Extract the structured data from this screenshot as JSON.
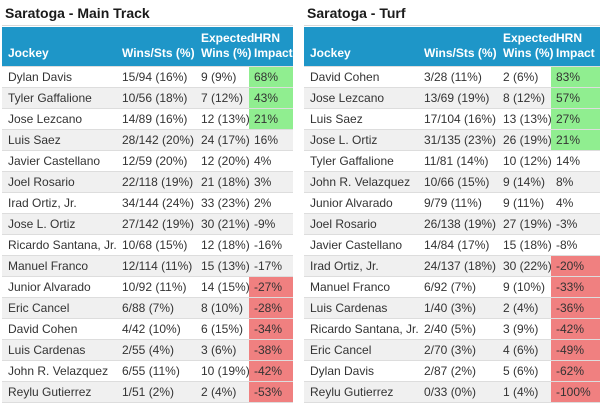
{
  "colors": {
    "header_bg": "#1e96c8",
    "header_text": "#ffffff",
    "positive_bg": "#90ee90",
    "negative_bg": "#f08080",
    "stripe_bg": "#f0f0f0",
    "row_border": "#dddddd",
    "text": "#333333",
    "title_text": "#1a1a1a"
  },
  "tables": [
    {
      "title": "Saratoga - Main Track",
      "headers": {
        "jockey": "Jockey",
        "wins_sts": "Wins/Sts (%)",
        "expected_l1": "Expected",
        "expected_l2": "Wins (%)",
        "impact_l1": "HRN",
        "impact_l2": "Impact"
      },
      "rows": [
        {
          "jockey": "Dylan Davis",
          "wins_sts": "15/94 (16%)",
          "expected": "9 (9%)",
          "impact": "68%",
          "highlight": "green"
        },
        {
          "jockey": "Tyler Gaffalione",
          "wins_sts": "10/56 (18%)",
          "expected": "7 (12%)",
          "impact": "43%",
          "highlight": "green"
        },
        {
          "jockey": "Jose Lezcano",
          "wins_sts": "14/89 (16%)",
          "expected": "12 (13%)",
          "impact": "21%",
          "highlight": "green"
        },
        {
          "jockey": "Luis Saez",
          "wins_sts": "28/142 (20%)",
          "expected": "24 (17%)",
          "impact": "16%",
          "highlight": "none"
        },
        {
          "jockey": "Javier Castellano",
          "wins_sts": "12/59 (20%)",
          "expected": "12 (20%)",
          "impact": "4%",
          "highlight": "none"
        },
        {
          "jockey": "Joel Rosario",
          "wins_sts": "22/118 (19%)",
          "expected": "21 (18%)",
          "impact": "3%",
          "highlight": "none"
        },
        {
          "jockey": "Irad Ortiz, Jr.",
          "wins_sts": "34/144 (24%)",
          "expected": "33 (23%)",
          "impact": "2%",
          "highlight": "none"
        },
        {
          "jockey": "Jose L. Ortiz",
          "wins_sts": "27/142 (19%)",
          "expected": "30 (21%)",
          "impact": "-9%",
          "highlight": "none"
        },
        {
          "jockey": "Ricardo Santana, Jr.",
          "wins_sts": "10/68 (15%)",
          "expected": "12 (18%)",
          "impact": "-16%",
          "highlight": "none"
        },
        {
          "jockey": "Manuel Franco",
          "wins_sts": "12/114 (11%)",
          "expected": "15 (13%)",
          "impact": "-17%",
          "highlight": "none"
        },
        {
          "jockey": "Junior Alvarado",
          "wins_sts": "10/92 (11%)",
          "expected": "14 (15%)",
          "impact": "-27%",
          "highlight": "red"
        },
        {
          "jockey": "Eric Cancel",
          "wins_sts": "6/88 (7%)",
          "expected": "8 (10%)",
          "impact": "-28%",
          "highlight": "red"
        },
        {
          "jockey": "David Cohen",
          "wins_sts": "4/42 (10%)",
          "expected": "6 (15%)",
          "impact": "-34%",
          "highlight": "red"
        },
        {
          "jockey": "Luis Cardenas",
          "wins_sts": "2/55 (4%)",
          "expected": "3 (6%)",
          "impact": "-38%",
          "highlight": "red"
        },
        {
          "jockey": "John R. Velazquez",
          "wins_sts": "6/55 (11%)",
          "expected": "10 (19%)",
          "impact": "-42%",
          "highlight": "red"
        },
        {
          "jockey": "Reylu Gutierrez",
          "wins_sts": "1/51 (2%)",
          "expected": "2 (4%)",
          "impact": "-53%",
          "highlight": "red"
        }
      ]
    },
    {
      "title": "Saratoga - Turf",
      "headers": {
        "jockey": "Jockey",
        "wins_sts": "Wins/Sts (%)",
        "expected_l1": "Expected",
        "expected_l2": "Wins (%)",
        "impact_l1": "HRN",
        "impact_l2": "Impact"
      },
      "rows": [
        {
          "jockey": "David Cohen",
          "wins_sts": "3/28 (11%)",
          "expected": "2 (6%)",
          "impact": "83%",
          "highlight": "green"
        },
        {
          "jockey": "Jose Lezcano",
          "wins_sts": "13/69 (19%)",
          "expected": "8 (12%)",
          "impact": "57%",
          "highlight": "green"
        },
        {
          "jockey": "Luis Saez",
          "wins_sts": "17/104 (16%)",
          "expected": "13 (13%)",
          "impact": "27%",
          "highlight": "green"
        },
        {
          "jockey": "Jose L. Ortiz",
          "wins_sts": "31/135 (23%)",
          "expected": "26 (19%)",
          "impact": "21%",
          "highlight": "green"
        },
        {
          "jockey": "Tyler Gaffalione",
          "wins_sts": "11/81 (14%)",
          "expected": "10 (12%)",
          "impact": "14%",
          "highlight": "none"
        },
        {
          "jockey": "John R. Velazquez",
          "wins_sts": "10/66 (15%)",
          "expected": "9 (14%)",
          "impact": "8%",
          "highlight": "none"
        },
        {
          "jockey": "Junior Alvarado",
          "wins_sts": "9/79 (11%)",
          "expected": "9 (11%)",
          "impact": "4%",
          "highlight": "none"
        },
        {
          "jockey": "Joel Rosario",
          "wins_sts": "26/138 (19%)",
          "expected": "27 (19%)",
          "impact": "-3%",
          "highlight": "none"
        },
        {
          "jockey": "Javier Castellano",
          "wins_sts": "14/84 (17%)",
          "expected": "15 (18%)",
          "impact": "-8%",
          "highlight": "none"
        },
        {
          "jockey": "Irad Ortiz, Jr.",
          "wins_sts": "24/137 (18%)",
          "expected": "30 (22%)",
          "impact": "-20%",
          "highlight": "red"
        },
        {
          "jockey": "Manuel Franco",
          "wins_sts": "6/92 (7%)",
          "expected": "9 (10%)",
          "impact": "-33%",
          "highlight": "red"
        },
        {
          "jockey": "Luis Cardenas",
          "wins_sts": "1/40 (3%)",
          "expected": "2 (4%)",
          "impact": "-36%",
          "highlight": "red"
        },
        {
          "jockey": "Ricardo Santana, Jr.",
          "wins_sts": "2/40 (5%)",
          "expected": "3 (9%)",
          "impact": "-42%",
          "highlight": "red"
        },
        {
          "jockey": "Eric Cancel",
          "wins_sts": "2/70 (3%)",
          "expected": "4 (6%)",
          "impact": "-49%",
          "highlight": "red"
        },
        {
          "jockey": "Dylan Davis",
          "wins_sts": "2/87 (2%)",
          "expected": "5 (6%)",
          "impact": "-62%",
          "highlight": "red"
        },
        {
          "jockey": "Reylu Gutierrez",
          "wins_sts": "0/33 (0%)",
          "expected": "1 (4%)",
          "impact": "-100%",
          "highlight": "red"
        }
      ]
    }
  ]
}
